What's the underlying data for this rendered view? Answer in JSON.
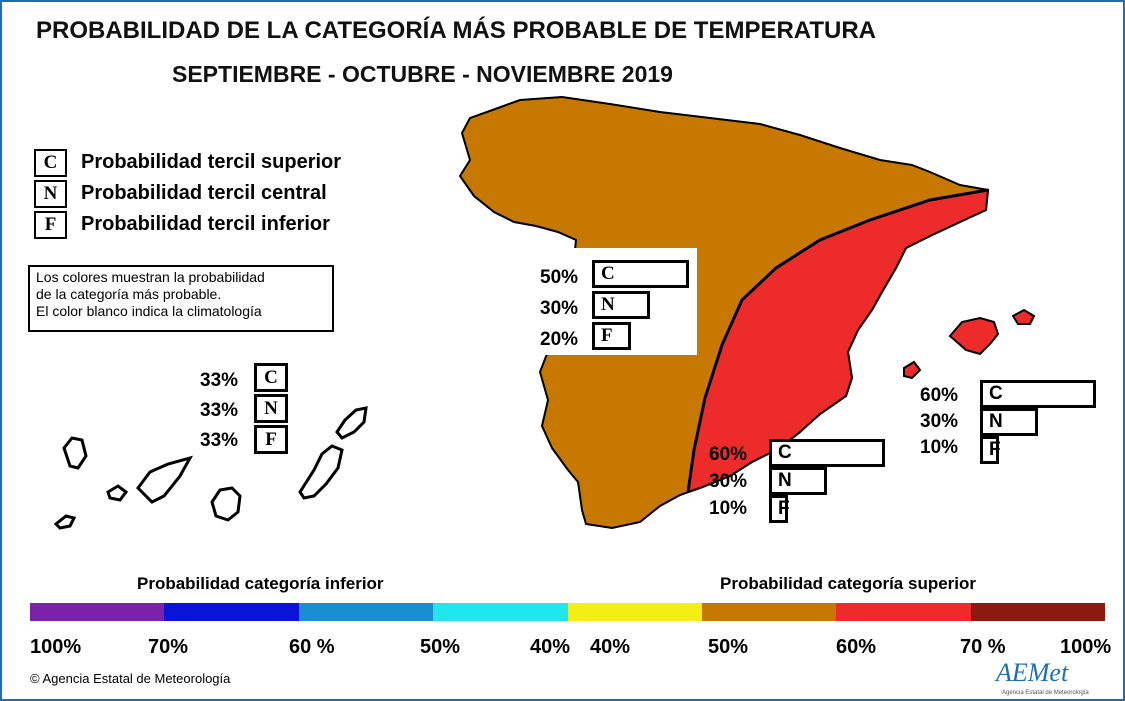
{
  "title": "PROBABILIDAD DE LA CATEGORÍA MÁS PROBABLE DE  TEMPERATURA",
  "subtitle": "SEPTIEMBRE - OCTUBRE - NOVIEMBRE 2019",
  "legend": [
    {
      "letter": "C",
      "text": "Probabilidad  tercil superior"
    },
    {
      "letter": "N",
      "text": "Probabilidad  tercil central"
    },
    {
      "letter": "F",
      "text": "Probabilidad  tercil inferior"
    }
  ],
  "note": [
    "Los colores muestran la probabilidad",
    "de la categoría más probable.",
    "El color blanco indica la climatología"
  ],
  "regions": {
    "canarias": {
      "C": "33%",
      "N": "33%",
      "F": "33%",
      "color": "#ffffff"
    },
    "north_west": {
      "C": "50%",
      "N": "30%",
      "F": "20%",
      "color": "#c77800",
      "fractions": {
        "C": 0.5,
        "N": 0.3,
        "F": 0.2
      }
    },
    "south_east": {
      "C": "60%",
      "N": "30%",
      "F": "10%",
      "color": "#ee2b2b",
      "fractions": {
        "C": 0.6,
        "N": 0.3,
        "F": 0.1
      }
    },
    "baleares": {
      "C": "60%",
      "N": "30%",
      "F": "10%",
      "color": "#ee2b2b",
      "fractions": {
        "C": 0.6,
        "N": 0.3,
        "F": 0.1
      }
    }
  },
  "scale": {
    "label_inferior": "Probabilidad  categoría inferior",
    "label_superior": "Probabilidad  categoría superior",
    "colors": [
      "#7a22a8",
      "#0a14d8",
      "#1a8fd0",
      "#22e6ee",
      "#f5ee16",
      "#c77800",
      "#ee2b2b",
      "#8b1a10"
    ],
    "ticks": [
      "100%",
      "70%",
      "60 %",
      "50%",
      "40%",
      "40%",
      "50%",
      "60%",
      "70 %",
      "100%"
    ]
  },
  "credit": "Agencia Estatal de Meteorología",
  "logo": "AEMet",
  "logo_sub": "Agencia Estatal de Meteorología"
}
